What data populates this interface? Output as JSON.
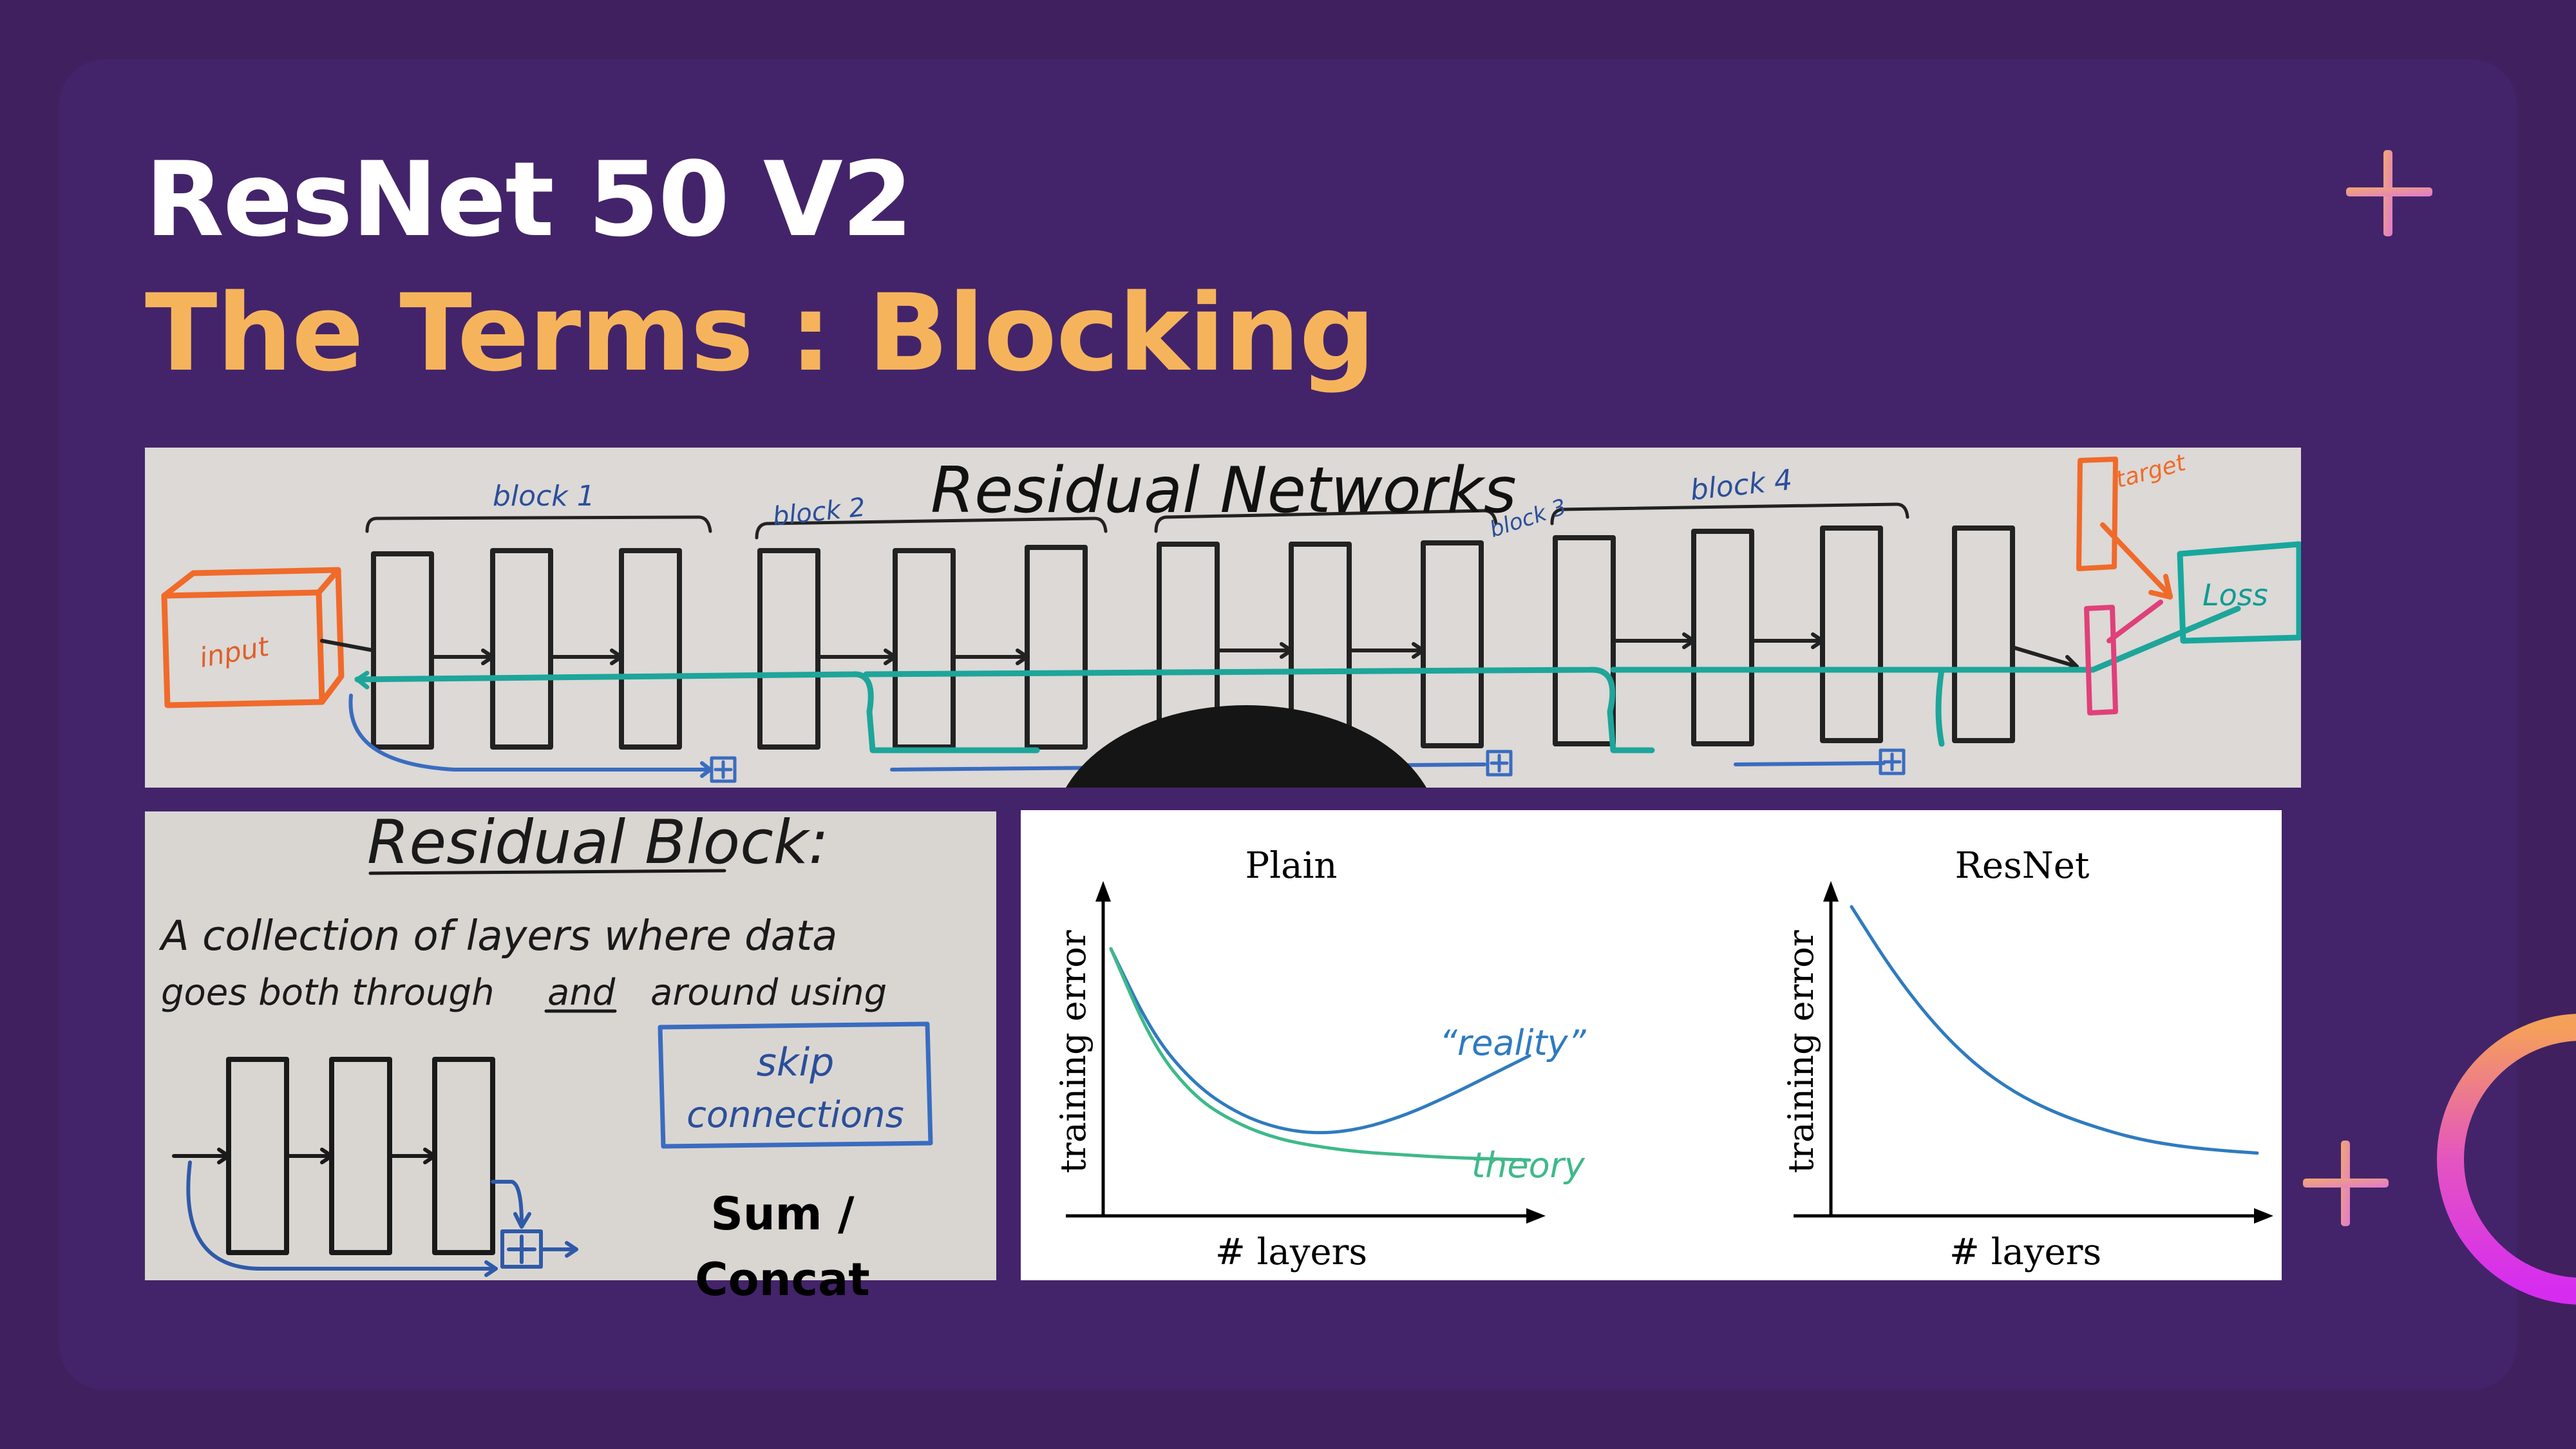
{
  "slide": {
    "title": "ResNet 50 V2",
    "subtitle": "The Terms : Blocking",
    "caption_line1": "Sum /",
    "caption_line2": "Concat"
  },
  "whiteboard_top": {
    "heading": "Residual Networks",
    "input_label": "input",
    "block_labels": [
      "block 1",
      "block 2",
      "block 3",
      "block 4"
    ],
    "target_label": "target",
    "loss_label": "Loss"
  },
  "whiteboard_bottom": {
    "heading": "Residual Block:",
    "line1": "A collection of layers where data",
    "line2_part1": "goes both through",
    "line2_and": "and",
    "line2_part2": "around using",
    "skip_line1": "skip",
    "skip_line2": "connections"
  },
  "chart_data": [
    {
      "type": "line",
      "title": "Plain",
      "xlabel": "# layers",
      "ylabel": "training error",
      "x": [
        0,
        1,
        2,
        3,
        4,
        5,
        6,
        7,
        8,
        9,
        10
      ],
      "series": [
        {
          "name": "“reality”",
          "color": "#2f7bbf",
          "values": [
            9.5,
            6.2,
            4.3,
            3.2,
            2.6,
            2.4,
            2.6,
            3.1,
            3.8,
            4.6,
            5.4
          ]
        },
        {
          "name": "theory",
          "color": "#3fb98a",
          "values": [
            9.5,
            5.8,
            3.8,
            2.8,
            2.2,
            1.9,
            1.7,
            1.6,
            1.5,
            1.45,
            1.4
          ]
        }
      ]
    },
    {
      "type": "line",
      "title": "ResNet",
      "xlabel": "# layers",
      "ylabel": "training error",
      "x": [
        0,
        1,
        2,
        3,
        4,
        5,
        6,
        7,
        8,
        9,
        10
      ],
      "series": [
        {
          "color": "#2f7bbf",
          "values": [
            10,
            7.8,
            6.0,
            4.6,
            3.6,
            2.9,
            2.4,
            2.0,
            1.75,
            1.6,
            1.5
          ]
        }
      ]
    }
  ],
  "colors": {
    "background": "#40205f",
    "card": "#43246a",
    "title": "#ffffff",
    "subtitle": "#f5b45c",
    "accent_plus": "#e8a0a8",
    "ring_start": "#f5a05a",
    "ring_end": "#d62cf0"
  },
  "icons": [
    "plus-icon",
    "plus-icon",
    "ring-icon"
  ]
}
